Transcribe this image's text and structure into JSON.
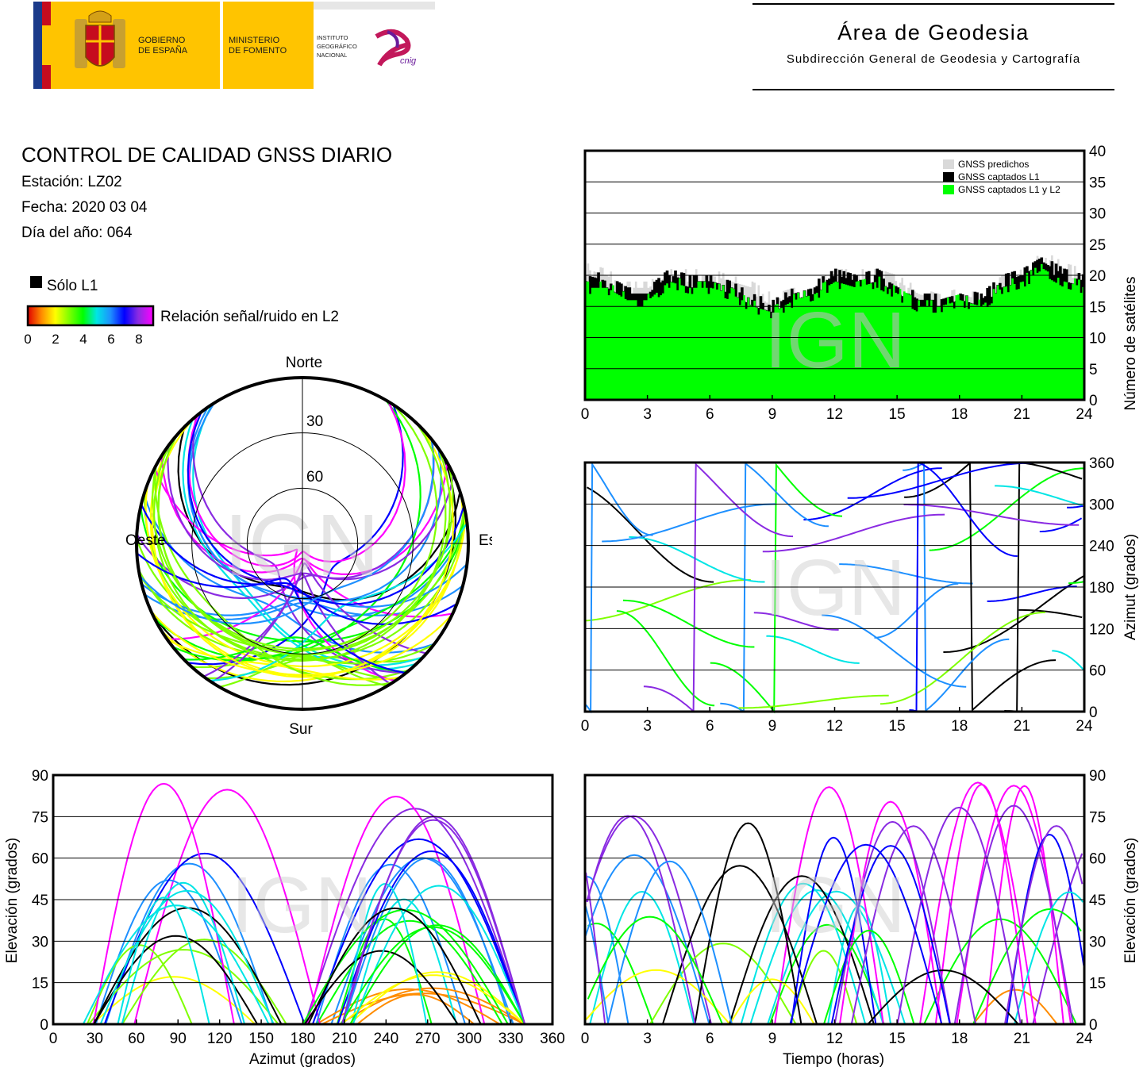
{
  "header": {
    "gov_lines": [
      "GOBIERNO",
      "DE ESPAÑA"
    ],
    "ministry_lines": [
      "MINISTERIO",
      "DE FOMENTO"
    ],
    "institute_lines": [
      "INSTITUTO",
      "GEOGRÁFICO",
      "NACIONAL"
    ],
    "cnig_text": "cnig",
    "area_title": "Área de Geodesia",
    "area_subtitle": "Subdirección General de Geodesia y Cartografía"
  },
  "info": {
    "title": "CONTROL DE CALIDAD GNSS DIARIO",
    "station": "Estación: LZ02",
    "date": "Fecha: 2020 03 04",
    "doy": "Día del año: 064"
  },
  "legend": {
    "l1_only": "Sólo L1",
    "snr_label": "Relación señal/ruido en L2",
    "scale_ticks": [
      "0",
      "2",
      "4",
      "6",
      "8"
    ]
  },
  "colors": {
    "l1_only": "#000000",
    "predicted": "#d9d9d9",
    "captured_l1_l2": "#00ff00",
    "snr_gradient": [
      "#e00000",
      "#ff8c00",
      "#ffff00",
      "#7fff00",
      "#00ff00",
      "#00e5e5",
      "#1e90ff",
      "#0000ff",
      "#8a2be2",
      "#ff00ff"
    ]
  },
  "watermark": "IGN",
  "chart_data": [
    {
      "id": "satellite-count",
      "type": "area",
      "ylabel": "Número de satélites",
      "xlim": [
        0,
        24
      ],
      "ylim": [
        0,
        40
      ],
      "xticks": [
        "0",
        "3",
        "6",
        "9",
        "12",
        "15",
        "18",
        "21",
        "24"
      ],
      "yticks": [
        "0",
        "5",
        "10",
        "15",
        "20",
        "25",
        "30",
        "35",
        "40"
      ],
      "grid": true,
      "legend_position": "top-right",
      "legend": [
        "GNSS predichos",
        "GNSS captados L1",
        "GNSS captados L1 y L2"
      ],
      "x": [
        0,
        1,
        2,
        3,
        4,
        5,
        6,
        7,
        8,
        9,
        10,
        11,
        12,
        13,
        14,
        15,
        16,
        17,
        18,
        19,
        20,
        21,
        22,
        23,
        24
      ],
      "series": [
        {
          "name": "GNSS predichos",
          "values": [
            21,
            20,
            18,
            18,
            20,
            20,
            20,
            19,
            18,
            16,
            17,
            18,
            20,
            20,
            20,
            19,
            17,
            16,
            17,
            16,
            19,
            20,
            23,
            21,
            20
          ]
        },
        {
          "name": "GNSS captados L1",
          "values": [
            20,
            19,
            17,
            17,
            20,
            19,
            19,
            18,
            16,
            15,
            17,
            18,
            20,
            19,
            20,
            18,
            16,
            16,
            17,
            16,
            19,
            20,
            22,
            20,
            19
          ]
        },
        {
          "name": "GNSS captados L1 y L2",
          "values": [
            18,
            18,
            16,
            16,
            19,
            18,
            18,
            17,
            15,
            14,
            16,
            17,
            19,
            18,
            19,
            17,
            15,
            15,
            16,
            15,
            18,
            19,
            21,
            19,
            18
          ]
        }
      ]
    },
    {
      "id": "azimuth-vs-time",
      "type": "scatter",
      "ylabel": "Azimut (grados)",
      "xlim": [
        0,
        24
      ],
      "ylim": [
        0,
        360
      ],
      "xticks": [
        "0",
        "3",
        "6",
        "9",
        "12",
        "15",
        "18",
        "21",
        "24"
      ],
      "yticks": [
        "0",
        "60",
        "120",
        "180",
        "240",
        "300",
        "360"
      ],
      "grid": true
    },
    {
      "id": "skyplot",
      "type": "scatter",
      "directions": {
        "north": "Norte",
        "south": "Sur",
        "east": "Este",
        "west": "Oeste"
      },
      "ring_labels": [
        "30",
        "60"
      ]
    },
    {
      "id": "elevation-vs-azimuth",
      "type": "scatter",
      "xlabel": "Azimut (grados)",
      "ylabel": "Elevación (grados)",
      "xlim": [
        0,
        360
      ],
      "ylim": [
        0,
        90
      ],
      "xticks": [
        "0",
        "30",
        "60",
        "90",
        "120",
        "150",
        "180",
        "210",
        "240",
        "270",
        "300",
        "330",
        "360"
      ],
      "yticks": [
        "0",
        "15",
        "30",
        "45",
        "60",
        "75",
        "90"
      ],
      "grid": true
    },
    {
      "id": "elevation-vs-time",
      "type": "scatter",
      "xlabel": "Tiempo (horas)",
      "ylabel": "Elevación (grados)",
      "xlim": [
        0,
        24
      ],
      "ylim": [
        0,
        90
      ],
      "xticks": [
        "0",
        "3",
        "6",
        "9",
        "12",
        "15",
        "18",
        "21",
        "24"
      ],
      "yticks": [
        "0",
        "15",
        "30",
        "45",
        "60",
        "75",
        "90"
      ],
      "grid": true
    }
  ]
}
